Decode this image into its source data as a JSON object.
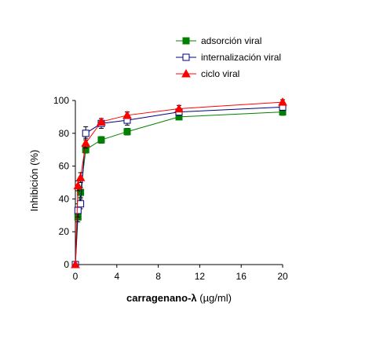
{
  "chart_data": {
    "type": "line",
    "xlabel_bold": "carragenano-λ",
    "xlabel_unit": " (µg/ml)",
    "ylabel": "Inhibición (%)",
    "xlim": [
      0,
      20
    ],
    "ylim": [
      0,
      100
    ],
    "xticks": [
      "0",
      "4",
      "8",
      "12",
      "16",
      "20"
    ],
    "yticks": [
      "0",
      "20",
      "40",
      "60",
      "80",
      "100"
    ],
    "grid": false,
    "legend_position": "top-right",
    "series": [
      {
        "name": "adsorción viral",
        "color": "#008000",
        "marker": "filled-square",
        "x": [
          0,
          0.25,
          0.5,
          1,
          2.5,
          5,
          10,
          20
        ],
        "y": [
          0,
          29,
          44,
          70,
          76,
          81,
          90,
          93
        ],
        "err": [
          0,
          3,
          3,
          2,
          2,
          2,
          1.5,
          2
        ]
      },
      {
        "name": "internalización viral",
        "color": "#000080",
        "marker": "open-square",
        "x": [
          0,
          0.25,
          0.5,
          1,
          2.5,
          5,
          10,
          20
        ],
        "y": [
          0,
          33,
          37,
          80,
          86,
          88,
          93,
          96
        ],
        "err": [
          0,
          4,
          3,
          4,
          3,
          3,
          2,
          2
        ]
      },
      {
        "name": "ciclo viral",
        "color": "#ff0000",
        "marker": "filled-triangle",
        "x": [
          0,
          0.25,
          0.5,
          1,
          2.5,
          5,
          10,
          20
        ],
        "y": [
          0,
          48,
          53,
          74,
          87,
          91,
          95,
          99
        ],
        "err": [
          0,
          3,
          3,
          3,
          2,
          2,
          2,
          1.5
        ]
      }
    ]
  }
}
